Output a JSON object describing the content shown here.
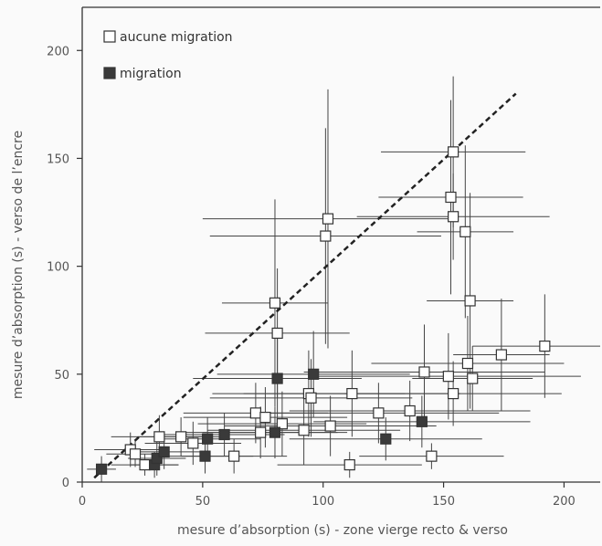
{
  "chart_data": {
    "type": "scatter",
    "title": "",
    "xlabel": "mesure d’absorption (s) - zone vierge recto & verso",
    "ylabel": "mesure d’absorption (s) - verso de l’encre",
    "xlim": [
      0,
      215
    ],
    "ylim": [
      0,
      220
    ],
    "xticks": [
      0,
      50,
      100,
      150,
      200
    ],
    "yticks": [
      0,
      50,
      100,
      150,
      200
    ],
    "grid": false,
    "legend_position": "top-left",
    "reference_line": {
      "style": "dashed",
      "x": [
        5,
        180
      ],
      "y": [
        2,
        180
      ]
    },
    "series": [
      {
        "name": "aucune migration",
        "marker": "open-square",
        "color": "#ffffff",
        "points": [
          {
            "x": 20,
            "y": 15,
            "xerr": 15,
            "yerr": 8
          },
          {
            "x": 22,
            "y": 13,
            "xerr": 12,
            "yerr": 6
          },
          {
            "x": 26,
            "y": 8,
            "xerr": 14,
            "yerr": 5
          },
          {
            "x": 32,
            "y": 21,
            "xerr": 20,
            "yerr": 10
          },
          {
            "x": 41,
            "y": 21,
            "xerr": 18,
            "yerr": 9
          },
          {
            "x": 46,
            "y": 18,
            "xerr": 20,
            "yerr": 10
          },
          {
            "x": 63,
            "y": 12,
            "xerr": 22,
            "yerr": 8
          },
          {
            "x": 72,
            "y": 32,
            "xerr": 30,
            "yerr": 14
          },
          {
            "x": 74,
            "y": 23,
            "xerr": 32,
            "yerr": 12
          },
          {
            "x": 76,
            "y": 30,
            "xerr": 34,
            "yerr": 14
          },
          {
            "x": 80,
            "y": 83,
            "xerr": 22,
            "yerr": 48
          },
          {
            "x": 81,
            "y": 69,
            "xerr": 30,
            "yerr": 30
          },
          {
            "x": 83,
            "y": 27,
            "xerr": 35,
            "yerr": 15
          },
          {
            "x": 92,
            "y": 24,
            "xerr": 40,
            "yerr": 16
          },
          {
            "x": 94,
            "y": 41,
            "xerr": 40,
            "yerr": 20
          },
          {
            "x": 95,
            "y": 39,
            "xerr": 42,
            "yerr": 18
          },
          {
            "x": 101,
            "y": 114,
            "xerr": 48,
            "yerr": 50
          },
          {
            "x": 102,
            "y": 122,
            "xerr": 52,
            "yerr": 60
          },
          {
            "x": 103,
            "y": 26,
            "xerr": 44,
            "yerr": 14
          },
          {
            "x": 111,
            "y": 8,
            "xerr": 30,
            "yerr": 6
          },
          {
            "x": 112,
            "y": 41,
            "xerr": 45,
            "yerr": 20
          },
          {
            "x": 123,
            "y": 32,
            "xerr": 50,
            "yerr": 14
          },
          {
            "x": 136,
            "y": 33,
            "xerr": 50,
            "yerr": 14
          },
          {
            "x": 142,
            "y": 51,
            "xerr": 50,
            "yerr": 22
          },
          {
            "x": 145,
            "y": 12,
            "xerr": 30,
            "yerr": 6
          },
          {
            "x": 152,
            "y": 49,
            "xerr": 55,
            "yerr": 20
          },
          {
            "x": 153,
            "y": 132,
            "xerr": 30,
            "yerr": 45
          },
          {
            "x": 154,
            "y": 153,
            "xerr": 30,
            "yerr": 35
          },
          {
            "x": 154,
            "y": 123,
            "xerr": 40,
            "yerr": 20
          },
          {
            "x": 154,
            "y": 41,
            "xerr": 45,
            "yerr": 15
          },
          {
            "x": 159,
            "y": 116,
            "xerr": 20,
            "yerr": 40
          },
          {
            "x": 160,
            "y": 55,
            "xerr": 40,
            "yerr": 22
          },
          {
            "x": 161,
            "y": 84,
            "xerr": 18,
            "yerr": 50
          },
          {
            "x": 162,
            "y": 48,
            "xerr": 25,
            "yerr": 15
          },
          {
            "x": 174,
            "y": 59,
            "xerr": 20,
            "yerr": 26
          },
          {
            "x": 192,
            "y": 63,
            "xerr": 30,
            "yerr": 24
          }
        ]
      },
      {
        "name": "migration",
        "marker": "filled-square",
        "color": "#3a3a3a",
        "points": [
          {
            "x": 8,
            "y": 6,
            "xerr": 6,
            "yerr": 6
          },
          {
            "x": 30,
            "y": 8,
            "xerr": 10,
            "yerr": 6
          },
          {
            "x": 31,
            "y": 11,
            "xerr": 12,
            "yerr": 8
          },
          {
            "x": 34,
            "y": 14,
            "xerr": 16,
            "yerr": 8
          },
          {
            "x": 51,
            "y": 12,
            "xerr": 20,
            "yerr": 8
          },
          {
            "x": 52,
            "y": 20,
            "xerr": 22,
            "yerr": 10
          },
          {
            "x": 59,
            "y": 22,
            "xerr": 25,
            "yerr": 10
          },
          {
            "x": 80,
            "y": 23,
            "xerr": 30,
            "yerr": 12
          },
          {
            "x": 81,
            "y": 48,
            "xerr": 35,
            "yerr": 20
          },
          {
            "x": 96,
            "y": 50,
            "xerr": 40,
            "yerr": 20
          },
          {
            "x": 126,
            "y": 20,
            "xerr": 40,
            "yerr": 10
          },
          {
            "x": 141,
            "y": 28,
            "xerr": 45,
            "yerr": 12
          }
        ]
      }
    ]
  }
}
